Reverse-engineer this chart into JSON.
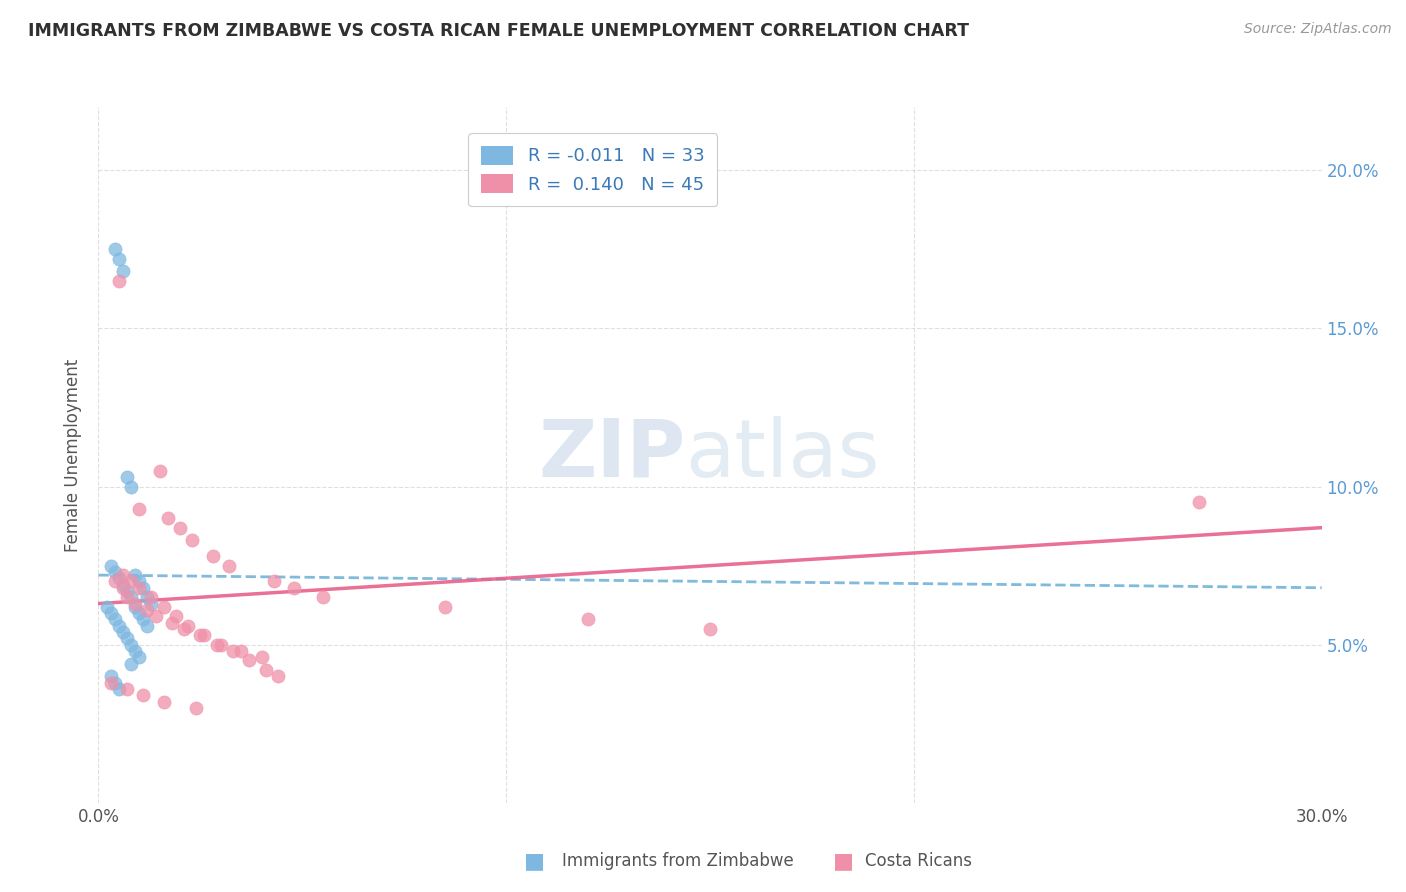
{
  "title": "IMMIGRANTS FROM ZIMBABWE VS COSTA RICAN FEMALE UNEMPLOYMENT CORRELATION CHART",
  "source": "Source: ZipAtlas.com",
  "ylabel": "Female Unemployment",
  "xlim": [
    0.0,
    0.3
  ],
  "ylim": [
    0.0,
    0.22
  ],
  "ytick_vals": [
    0.05,
    0.1,
    0.15,
    0.2
  ],
  "ytick_labels": [
    "5.0%",
    "10.0%",
    "15.0%",
    "20.0%"
  ],
  "xtick_vals": [
    0.0,
    0.1,
    0.2,
    0.3
  ],
  "xtick_labels": [
    "0.0%",
    "",
    "",
    "30.0%"
  ],
  "blue_scatter_x": [
    0.004,
    0.005,
    0.006,
    0.007,
    0.008,
    0.009,
    0.01,
    0.011,
    0.012,
    0.013,
    0.003,
    0.004,
    0.005,
    0.006,
    0.007,
    0.008,
    0.009,
    0.01,
    0.011,
    0.012,
    0.002,
    0.003,
    0.004,
    0.005,
    0.006,
    0.007,
    0.008,
    0.009,
    0.01,
    0.003,
    0.004,
    0.005,
    0.008
  ],
  "blue_scatter_y": [
    0.175,
    0.172,
    0.168,
    0.103,
    0.1,
    0.072,
    0.07,
    0.068,
    0.065,
    0.063,
    0.075,
    0.073,
    0.071,
    0.069,
    0.067,
    0.065,
    0.062,
    0.06,
    0.058,
    0.056,
    0.062,
    0.06,
    0.058,
    0.056,
    0.054,
    0.052,
    0.05,
    0.048,
    0.046,
    0.04,
    0.038,
    0.036,
    0.044
  ],
  "pink_scatter_x": [
    0.005,
    0.015,
    0.01,
    0.017,
    0.02,
    0.023,
    0.028,
    0.032,
    0.043,
    0.048,
    0.007,
    0.009,
    0.012,
    0.014,
    0.018,
    0.021,
    0.025,
    0.03,
    0.035,
    0.04,
    0.006,
    0.008,
    0.01,
    0.013,
    0.016,
    0.019,
    0.022,
    0.026,
    0.029,
    0.033,
    0.037,
    0.041,
    0.044,
    0.27,
    0.004,
    0.006,
    0.055,
    0.085,
    0.12,
    0.15,
    0.003,
    0.007,
    0.011,
    0.016,
    0.024
  ],
  "pink_scatter_y": [
    0.165,
    0.105,
    0.093,
    0.09,
    0.087,
    0.083,
    0.078,
    0.075,
    0.07,
    0.068,
    0.065,
    0.063,
    0.061,
    0.059,
    0.057,
    0.055,
    0.053,
    0.05,
    0.048,
    0.046,
    0.072,
    0.07,
    0.068,
    0.065,
    0.062,
    0.059,
    0.056,
    0.053,
    0.05,
    0.048,
    0.045,
    0.042,
    0.04,
    0.095,
    0.07,
    0.068,
    0.065,
    0.062,
    0.058,
    0.055,
    0.038,
    0.036,
    0.034,
    0.032,
    0.03
  ],
  "blue_line_x": [
    0.0,
    0.3
  ],
  "blue_line_y": [
    0.072,
    0.068
  ],
  "pink_line_x": [
    0.0,
    0.3
  ],
  "pink_line_y": [
    0.063,
    0.087
  ],
  "scatter_color_blue": "#7eb8e0",
  "scatter_color_pink": "#f090a8",
  "line_color_blue": "#6aaed6",
  "line_color_pink": "#e8608a",
  "grid_color": "#d8d8d8",
  "background_color": "#ffffff",
  "title_color": "#303030",
  "right_axis_color": "#5b9bd5",
  "watermark_color": "#c8d8e8"
}
